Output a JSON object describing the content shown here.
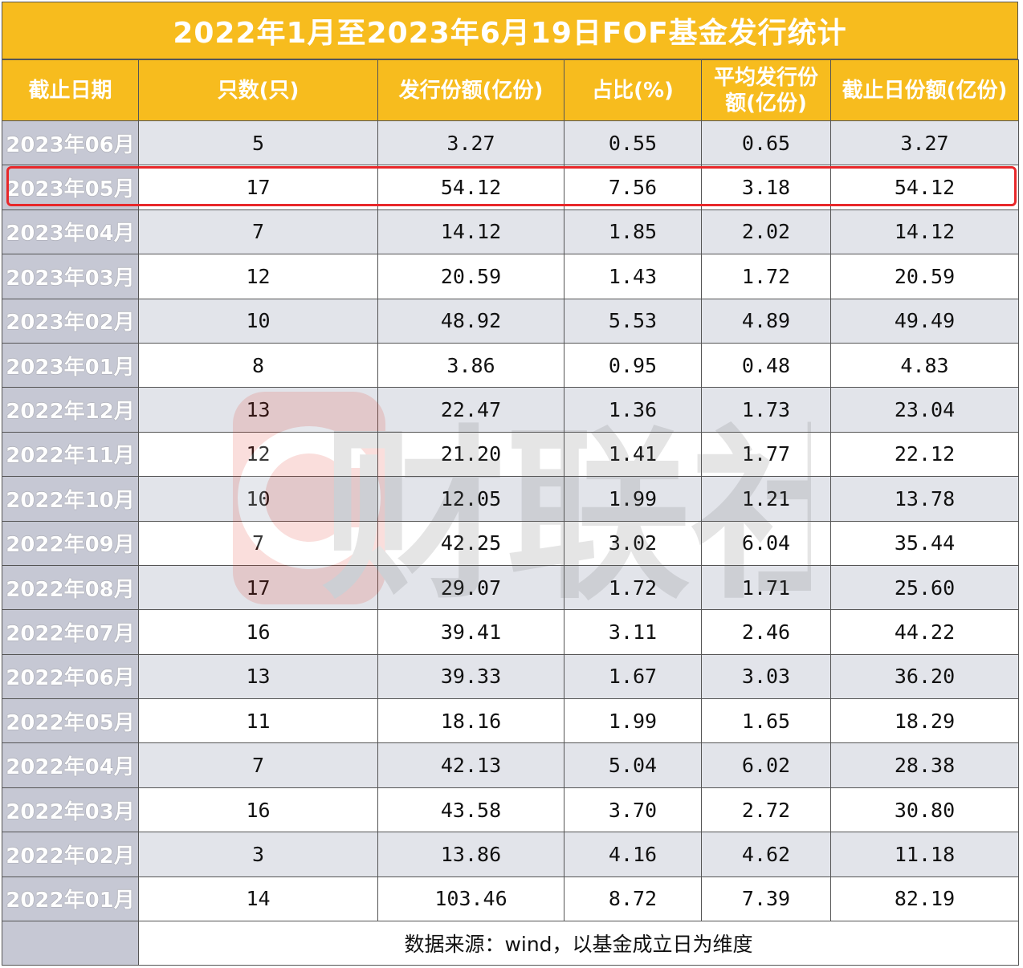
{
  "title": "2022年1月至2023年6月19日FOF基金发行统计",
  "headers": [
    "截止日期",
    "只数(只)",
    "发行份额(亿份)",
    "占比(%)",
    "平均发行份额(亿份)",
    "截止日份额(亿份)"
  ],
  "rows": [
    [
      "2023年06月",
      "5",
      "3.27",
      "0.55",
      "0.65",
      "3.27"
    ],
    [
      "2023年05月",
      "17",
      "54.12",
      "7.56",
      "3.18",
      "54.12"
    ],
    [
      "2023年04月",
      "7",
      "14.12",
      "1.85",
      "2.02",
      "14.12"
    ],
    [
      "2023年03月",
      "12",
      "20.59",
      "1.43",
      "1.72",
      "20.59"
    ],
    [
      "2023年02月",
      "10",
      "48.92",
      "5.53",
      "4.89",
      "49.49"
    ],
    [
      "2023年01月",
      "8",
      "3.86",
      "0.95",
      "0.48",
      "4.83"
    ],
    [
      "2022年12月",
      "13",
      "22.47",
      "1.36",
      "1.73",
      "23.04"
    ],
    [
      "2022年11月",
      "12",
      "21.20",
      "1.41",
      "1.77",
      "22.12"
    ],
    [
      "2022年10月",
      "10",
      "12.05",
      "1.99",
      "1.21",
      "13.78"
    ],
    [
      "2022年09月",
      "7",
      "42.25",
      "3.02",
      "6.04",
      "35.44"
    ],
    [
      "2022年08月",
      "17",
      "29.07",
      "1.72",
      "1.71",
      "25.60"
    ],
    [
      "2022年07月",
      "16",
      "39.41",
      "3.11",
      "2.46",
      "44.22"
    ],
    [
      "2022年06月",
      "13",
      "39.33",
      "1.67",
      "3.03",
      "36.20"
    ],
    [
      "2022年05月",
      "11",
      "18.16",
      "1.99",
      "1.65",
      "18.29"
    ],
    [
      "2022年04月",
      "7",
      "42.13",
      "5.04",
      "6.02",
      "28.38"
    ],
    [
      "2022年03月",
      "16",
      "43.58",
      "3.70",
      "2.72",
      "30.80"
    ],
    [
      "2022年02月",
      "3",
      "13.86",
      "4.16",
      "4.62",
      "11.18"
    ],
    [
      "2022年01月",
      "14",
      "103.46",
      "8.72",
      "7.39",
      "82.19"
    ]
  ],
  "footer": "数据来源：wind，以基金成立日为维度",
  "watermark": "财联社",
  "colors": {
    "header": "#f7bc1e",
    "date_cell": "#c6c8d4",
    "alt_row": "#e2e4ea",
    "highlight": "#e8282a"
  }
}
